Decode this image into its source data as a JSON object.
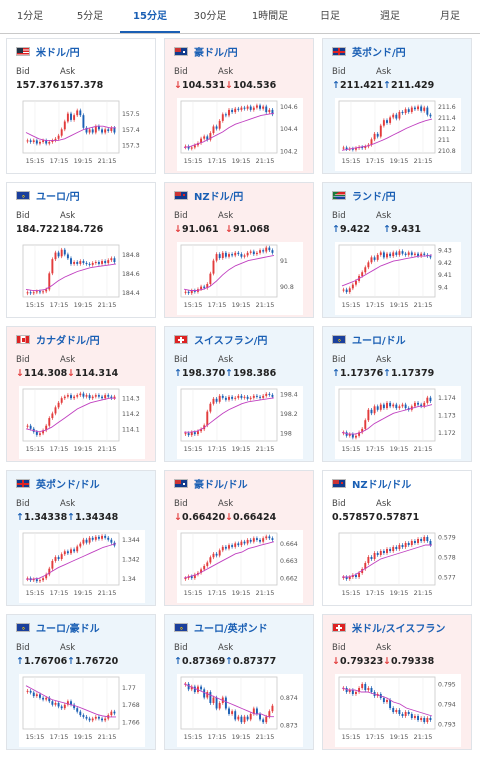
{
  "tabs": [
    {
      "label": "1分足",
      "active": false
    },
    {
      "label": "5分足",
      "active": false
    },
    {
      "label": "15分足",
      "active": true
    },
    {
      "label": "30分足",
      "active": false
    },
    {
      "label": "1時間足",
      "active": false
    },
    {
      "label": "日足",
      "active": false
    },
    {
      "label": "週足",
      "active": false
    },
    {
      "label": "月足",
      "active": false
    }
  ],
  "labels": {
    "bid": "Bid",
    "ask": "Ask"
  },
  "colors": {
    "up_arrow": "#1a5fb4",
    "down_arrow": "#e23b3b",
    "candle_up": "#e23b3b",
    "candle_down": "#1a5fb4",
    "ma": "#c040c0"
  },
  "x_ticks": [
    "15:15",
    "17:15",
    "19:15",
    "21:15"
  ],
  "cards": [
    {
      "pair": "米ドル/円",
      "flag": "us",
      "trend": "flat",
      "bid": "157.376",
      "ask": "157.378",
      "arrow": "",
      "y_ticks": [
        "157.5",
        "157.4",
        "157.3"
      ],
      "chart_data": {
        "type": "candlestick",
        "ylim": [
          157.25,
          157.58
        ],
        "closes": [
          157.33,
          157.32,
          157.33,
          157.31,
          157.32,
          157.33,
          157.31,
          157.32,
          157.33,
          157.34,
          157.36,
          157.4,
          157.45,
          157.5,
          157.46,
          157.49,
          157.52,
          157.49,
          157.41,
          157.38,
          157.4,
          157.38,
          157.42,
          157.4,
          157.38,
          157.4,
          157.39,
          157.41,
          157.38
        ],
        "ma": [
          157.38,
          157.36,
          157.34,
          157.33,
          157.33,
          157.33,
          157.34,
          157.36,
          157.38,
          157.4,
          157.41,
          157.42,
          157.42,
          157.41,
          157.41
        ]
      }
    },
    {
      "pair": "豪ドル/円",
      "flag": "au",
      "trend": "down",
      "bid": "104.531",
      "ask": "104.536",
      "arrow": "↓",
      "y_ticks": [
        "104.6",
        "104.4",
        "104.2"
      ],
      "chart_data": {
        "type": "candlestick",
        "ylim": [
          104.18,
          104.65
        ],
        "closes": [
          104.24,
          104.22,
          104.23,
          104.25,
          104.27,
          104.31,
          104.33,
          104.3,
          104.36,
          104.42,
          104.4,
          104.47,
          104.53,
          104.52,
          104.57,
          104.55,
          104.58,
          104.57,
          104.59,
          104.58,
          104.6,
          104.57,
          104.59,
          104.61,
          104.58,
          104.6,
          104.55,
          104.57,
          104.53
        ],
        "ma": [
          104.23,
          104.24,
          104.26,
          104.28,
          104.31,
          104.34,
          104.37,
          104.41,
          104.44,
          104.46,
          104.48,
          104.5,
          104.52,
          104.53,
          104.54
        ]
      }
    },
    {
      "pair": "英ポンド/円",
      "flag": "gb",
      "trend": "up",
      "bid": "211.421",
      "ask": "211.429",
      "arrow": "↑",
      "y_ticks": [
        "211.6",
        "211.4",
        "211.2",
        "211",
        "210.8"
      ],
      "chart_data": {
        "type": "candlestick",
        "ylim": [
          210.75,
          211.7
        ],
        "closes": [
          210.85,
          210.82,
          210.83,
          210.81,
          210.84,
          210.86,
          210.84,
          210.87,
          210.9,
          211.0,
          211.1,
          211.05,
          211.25,
          211.35,
          211.3,
          211.4,
          211.45,
          211.38,
          211.5,
          211.48,
          211.55,
          211.5,
          211.58,
          211.55,
          211.6,
          211.52,
          211.58,
          211.45,
          211.42
        ],
        "ma": [
          210.8,
          210.82,
          210.84,
          210.86,
          210.88,
          210.92,
          210.97,
          211.02,
          211.08,
          211.14,
          211.2,
          211.25,
          211.3,
          211.34,
          211.37
        ]
      }
    },
    {
      "pair": "ユーロ/円",
      "flag": "eu",
      "trend": "flat",
      "bid": "184.722",
      "ask": "184.726",
      "arrow": "",
      "y_ticks": [
        "184.8",
        "184.6",
        "184.4"
      ],
      "chart_data": {
        "type": "candlestick",
        "ylim": [
          184.35,
          184.9
        ],
        "closes": [
          184.4,
          184.39,
          184.4,
          184.41,
          184.4,
          184.41,
          184.43,
          184.6,
          184.75,
          184.82,
          184.78,
          184.85,
          184.8,
          184.76,
          184.7,
          184.72,
          184.7,
          184.73,
          184.71,
          184.7,
          184.69,
          184.71,
          184.72,
          184.7,
          184.73,
          184.71,
          184.74,
          184.76,
          184.72
        ],
        "ma": [
          184.43,
          184.42,
          184.42,
          184.43,
          184.47,
          184.52,
          184.56,
          184.59,
          184.62,
          184.64,
          184.66,
          184.67,
          184.68,
          184.69,
          184.7
        ]
      }
    },
    {
      "pair": "NZドル/円",
      "flag": "nz",
      "trend": "down",
      "bid": "91.061",
      "ask": "91.068",
      "arrow": "↓",
      "y_ticks": [
        "91",
        "90.8"
      ],
      "chart_data": {
        "type": "candlestick",
        "ylim": [
          90.72,
          91.12
        ],
        "closes": [
          90.76,
          90.75,
          90.77,
          90.76,
          90.78,
          90.8,
          90.79,
          90.82,
          90.9,
          91.0,
          91.05,
          91.02,
          91.06,
          91.03,
          91.05,
          91.04,
          91.06,
          91.05,
          91.03,
          91.04,
          91.06,
          91.07,
          91.05,
          91.06,
          91.08,
          91.07,
          91.1,
          91.08,
          91.06
        ],
        "ma": [
          90.78,
          90.77,
          90.77,
          90.78,
          90.8,
          90.84,
          90.89,
          90.93,
          90.96,
          90.98,
          91.0,
          91.01,
          91.02,
          91.03,
          91.04
        ]
      }
    },
    {
      "pair": "ランド/円",
      "flag": "za",
      "trend": "up",
      "bid": "9.422",
      "ask": "9.431",
      "arrow": "↑",
      "y_ticks": [
        "9.43",
        "9.42",
        "9.41",
        "9.4"
      ],
      "chart_data": {
        "type": "candlestick",
        "ylim": [
          9.392,
          9.434
        ],
        "closes": [
          9.398,
          9.396,
          9.399,
          9.402,
          9.405,
          9.409,
          9.412,
          9.416,
          9.42,
          9.424,
          9.422,
          9.426,
          9.428,
          9.424,
          9.427,
          9.425,
          9.428,
          9.426,
          9.429,
          9.427,
          9.426,
          9.428,
          9.426,
          9.427,
          9.425,
          9.427,
          9.426,
          9.425,
          9.424
        ],
        "ma": [
          9.401,
          9.403,
          9.405,
          9.408,
          9.411,
          9.414,
          9.417,
          9.419,
          9.421,
          9.422,
          9.423,
          9.424,
          9.425,
          9.425,
          9.426
        ]
      }
    },
    {
      "pair": "カナダドル/円",
      "flag": "ca",
      "trend": "down",
      "bid": "114.308",
      "ask": "114.314",
      "arrow": "↓",
      "y_ticks": [
        "114.3",
        "114.2",
        "114.1"
      ],
      "chart_data": {
        "type": "candlestick",
        "ylim": [
          114.02,
          114.36
        ],
        "closes": [
          114.12,
          114.1,
          114.08,
          114.06,
          114.07,
          114.09,
          114.12,
          114.17,
          114.2,
          114.24,
          114.27,
          114.3,
          114.31,
          114.32,
          114.3,
          114.31,
          114.32,
          114.33,
          114.31,
          114.32,
          114.3,
          114.31,
          114.32,
          114.31,
          114.3,
          114.32,
          114.31,
          114.3,
          114.31
        ],
        "ma": [
          114.1,
          114.09,
          114.08,
          114.09,
          114.11,
          114.14,
          114.17,
          114.2,
          114.23,
          114.25,
          114.27,
          114.28,
          114.29,
          114.3,
          114.3
        ]
      }
    },
    {
      "pair": "スイスフラン/円",
      "flag": "ch",
      "trend": "up",
      "bid": "198.370",
      "ask": "198.386",
      "arrow": "↑",
      "y_ticks": [
        "198.4",
        "198.2",
        "198"
      ],
      "chart_data": {
        "type": "candlestick",
        "ylim": [
          197.92,
          198.45
        ],
        "closes": [
          198.0,
          197.98,
          198.01,
          197.99,
          198.02,
          198.04,
          198.08,
          198.22,
          198.3,
          198.35,
          198.32,
          198.38,
          198.36,
          198.34,
          198.37,
          198.35,
          198.36,
          198.38,
          198.36,
          198.37,
          198.35,
          198.36,
          198.38,
          198.37,
          198.36,
          198.38,
          198.4,
          198.39,
          198.37
        ],
        "ma": [
          198.01,
          198.01,
          198.02,
          198.05,
          198.1,
          198.15,
          198.2,
          198.24,
          198.27,
          198.3,
          198.32,
          198.33,
          198.34,
          198.35,
          198.36
        ]
      }
    },
    {
      "pair": "ユーロ/ドル",
      "flag": "eu",
      "trend": "up",
      "bid": "1.17376",
      "ask": "1.17379",
      "arrow": "↑",
      "y_ticks": [
        "1.174",
        "1.173",
        "1.172"
      ],
      "chart_data": {
        "type": "candlestick",
        "ylim": [
          1.1715,
          1.1745
        ],
        "closes": [
          1.172,
          1.1718,
          1.1719,
          1.1717,
          1.1718,
          1.172,
          1.1722,
          1.1727,
          1.1733,
          1.1731,
          1.1735,
          1.1733,
          1.1736,
          1.1734,
          1.1737,
          1.1735,
          1.1736,
          1.1734,
          1.1735,
          1.1736,
          1.1734,
          1.1733,
          1.1735,
          1.1737,
          1.1736,
          1.1735,
          1.1737,
          1.174,
          1.1738
        ],
        "ma": [
          1.172,
          1.1719,
          1.1719,
          1.172,
          1.1722,
          1.1725,
          1.1727,
          1.1729,
          1.1731,
          1.1732,
          1.1733,
          1.1734,
          1.1735,
          1.1735,
          1.1736
        ]
      }
    },
    {
      "pair": "英ポンド/ドル",
      "flag": "gb",
      "trend": "up",
      "bid": "1.34338",
      "ask": "1.34348",
      "arrow": "↑",
      "y_ticks": [
        "1.344",
        "1.342",
        "1.34"
      ],
      "chart_data": {
        "type": "candlestick",
        "ylim": [
          1.3393,
          1.3447
        ],
        "closes": [
          1.34,
          1.3398,
          1.3399,
          1.3397,
          1.3398,
          1.34,
          1.3404,
          1.341,
          1.3418,
          1.3422,
          1.342,
          1.3425,
          1.3428,
          1.3426,
          1.343,
          1.3428,
          1.3433,
          1.3436,
          1.344,
          1.3437,
          1.3442,
          1.344,
          1.3443,
          1.3441,
          1.3444,
          1.3442,
          1.344,
          1.3437,
          1.3434
        ],
        "ma": [
          1.3399,
          1.3399,
          1.34,
          1.3403,
          1.3407,
          1.3411,
          1.3414,
          1.3417,
          1.342,
          1.3423,
          1.3426,
          1.3429,
          1.3432,
          1.3434,
          1.3436
        ]
      }
    },
    {
      "pair": "豪ドル/ドル",
      "flag": "au",
      "trend": "down",
      "bid": "0.66420",
      "ask": "0.66424",
      "arrow": "↓",
      "y_ticks": [
        "0.664",
        "0.663",
        "0.662"
      ],
      "chart_data": {
        "type": "candlestick",
        "ylim": [
          0.6616,
          0.6646
        ],
        "closes": [
          0.662,
          0.6621,
          0.662,
          0.6622,
          0.6623,
          0.6625,
          0.6627,
          0.6629,
          0.6632,
          0.6634,
          0.6633,
          0.6636,
          0.6638,
          0.6637,
          0.6639,
          0.6638,
          0.664,
          0.6639,
          0.6641,
          0.664,
          0.6642,
          0.6641,
          0.6643,
          0.6642,
          0.6641,
          0.6643,
          0.6644,
          0.6643,
          0.6642
        ],
        "ma": [
          0.662,
          0.6621,
          0.6622,
          0.6624,
          0.6626,
          0.6628,
          0.663,
          0.6632,
          0.6634,
          0.6635,
          0.6637,
          0.6638,
          0.6639,
          0.664,
          0.6641
        ]
      }
    },
    {
      "pair": "NZドル/ドル",
      "flag": "nz",
      "trend": "flat",
      "bid": "0.57857",
      "ask": "0.57871",
      "arrow": "",
      "y_ticks": [
        "0.579",
        "0.578",
        "0.577"
      ],
      "chart_data": {
        "type": "candlestick",
        "ylim": [
          0.5766,
          0.5792
        ],
        "closes": [
          0.577,
          0.5769,
          0.577,
          0.5771,
          0.577,
          0.5772,
          0.5774,
          0.5777,
          0.578,
          0.5779,
          0.5782,
          0.5781,
          0.5783,
          0.5782,
          0.5784,
          0.5783,
          0.5785,
          0.5784,
          0.5786,
          0.5785,
          0.5787,
          0.5786,
          0.5788,
          0.5787,
          0.5789,
          0.5788,
          0.579,
          0.5788,
          0.5786
        ],
        "ma": [
          0.577,
          0.577,
          0.5771,
          0.5773,
          0.5775,
          0.5777,
          0.5779,
          0.578,
          0.5781,
          0.5782,
          0.5783,
          0.5784,
          0.5785,
          0.5786,
          0.5786
        ]
      }
    },
    {
      "pair": "ユーロ/豪ドル",
      "flag": "eu",
      "trend": "up",
      "bid": "1.76706",
      "ask": "1.76720",
      "arrow": "↑",
      "y_ticks": [
        "1.77",
        "1.768",
        "1.766"
      ],
      "chart_data": {
        "type": "candlestick",
        "ylim": [
          1.7652,
          1.7712
        ],
        "closes": [
          1.7696,
          1.7694,
          1.769,
          1.7692,
          1.7688,
          1.7686,
          1.7688,
          1.7684,
          1.768,
          1.7682,
          1.7678,
          1.7676,
          1.768,
          1.7684,
          1.768,
          1.7676,
          1.7672,
          1.7668,
          1.7666,
          1.7664,
          1.7662,
          1.7664,
          1.7666,
          1.7664,
          1.7662,
          1.7664,
          1.7668,
          1.7672,
          1.767
        ],
        "ma": [
          1.7702,
          1.7698,
          1.7694,
          1.769,
          1.7686,
          1.7684,
          1.7682,
          1.768,
          1.7678,
          1.7675,
          1.7672,
          1.7669,
          1.7667,
          1.7666,
          1.7666
        ]
      }
    },
    {
      "pair": "ユーロ/英ポンド",
      "flag": "eu",
      "trend": "up",
      "bid": "0.87369",
      "ask": "0.87377",
      "arrow": "↑",
      "y_ticks": [
        "0.874",
        "0.873"
      ],
      "chart_data": {
        "type": "candlestick",
        "ylim": [
          0.87285,
          0.87475
        ],
        "closes": [
          0.8745,
          0.8743,
          0.8744,
          0.8742,
          0.8744,
          0.8743,
          0.874,
          0.8742,
          0.8738,
          0.874,
          0.8736,
          0.8738,
          0.874,
          0.8736,
          0.8734,
          0.8735,
          0.8732,
          0.8733,
          0.8731,
          0.8733,
          0.8732,
          0.8734,
          0.8736,
          0.8734,
          0.8732,
          0.8731,
          0.8733,
          0.8735,
          0.8737
        ],
        "ma": [
          0.8745,
          0.8744,
          0.8743,
          0.8742,
          0.8741,
          0.874,
          0.8739,
          0.8738,
          0.8737,
          0.8736,
          0.8735,
          0.8734,
          0.8734,
          0.8733,
          0.8733
        ]
      }
    },
    {
      "pair": "米ドル/スイスフラン",
      "flag": "ch",
      "trend": "down",
      "bid": "0.79323",
      "ask": "0.79338",
      "arrow": "↓",
      "y_ticks": [
        "0.795",
        "0.794",
        "0.793"
      ],
      "chart_data": {
        "type": "candlestick",
        "ylim": [
          0.79275,
          0.79535
        ],
        "closes": [
          0.7948,
          0.7946,
          0.7947,
          0.7945,
          0.7946,
          0.7948,
          0.795,
          0.7947,
          0.7948,
          0.7946,
          0.7944,
          0.7945,
          0.7943,
          0.7941,
          0.7942,
          0.7938,
          0.7936,
          0.7937,
          0.7935,
          0.7934,
          0.7936,
          0.7935,
          0.7933,
          0.7934,
          0.7932,
          0.7933,
          0.7931,
          0.7933,
          0.7932
        ],
        "ma": [
          0.7948,
          0.7947,
          0.7947,
          0.7946,
          0.7946,
          0.7945,
          0.7944,
          0.7943,
          0.7941,
          0.794,
          0.7938,
          0.7937,
          0.7936,
          0.7935,
          0.7934
        ]
      }
    }
  ]
}
